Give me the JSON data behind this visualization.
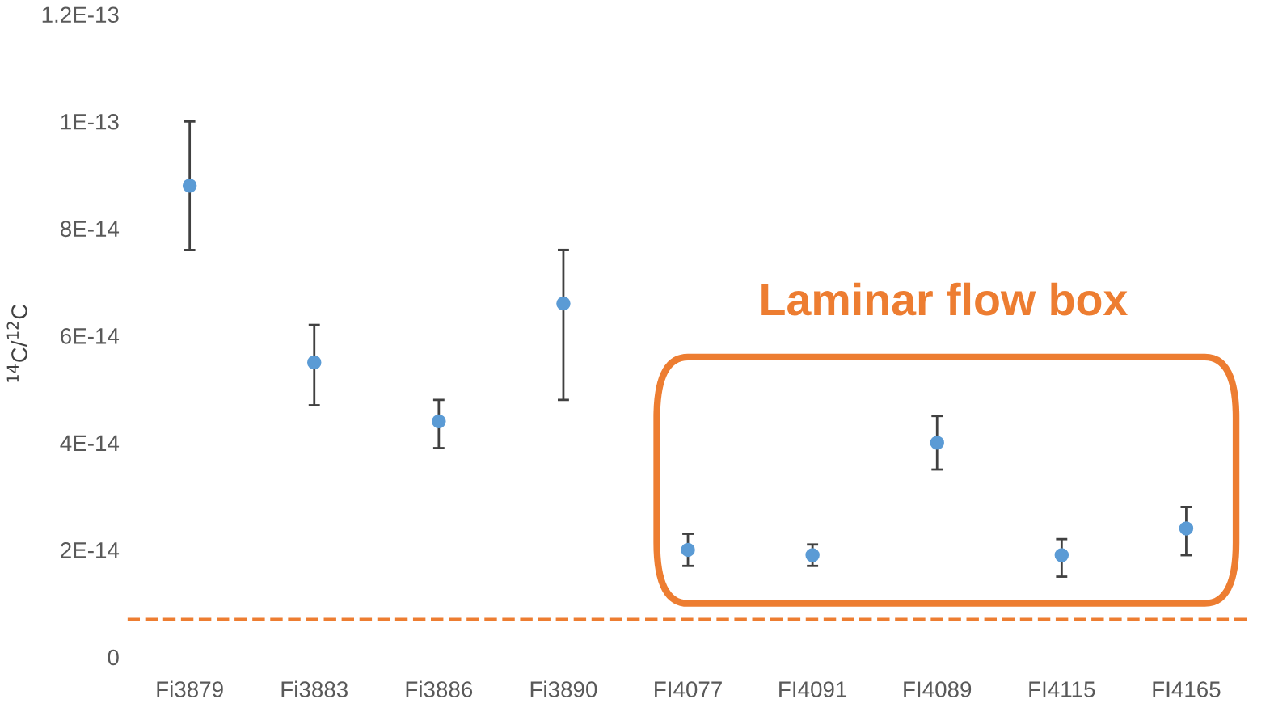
{
  "chart_data": {
    "type": "scatter",
    "ylabel": "$^{14}$C/$^{12}$C",
    "categories": [
      "Fi3879",
      "Fi3883",
      "Fi3886",
      "Fi3890",
      "FI4077",
      "FI4091",
      "FI4089",
      "FI4115",
      "FI4165"
    ],
    "series": [
      {
        "color": "#5b9bd5",
        "values": [
          8.8e-14,
          5.5e-14,
          4.4e-14,
          6.6e-14,
          2e-14,
          1.9e-14,
          4e-14,
          1.9e-14,
          2.4e-14
        ],
        "errors": [
          [
            7.6e-14,
            1e-13
          ],
          [
            4.7e-14,
            6.2e-14
          ],
          [
            3.9e-14,
            4.8e-14
          ],
          [
            4.8e-14,
            7.6e-14
          ],
          [
            1.7e-14,
            2.3e-14
          ],
          [
            1.7e-14,
            2.1e-14
          ],
          [
            3.5e-14,
            4.5e-14
          ],
          [
            1.5e-14,
            2.2e-14
          ],
          [
            1.9e-14,
            2.8e-14
          ]
        ]
      }
    ],
    "ylim": [
      -3e-15,
      1.2e-13
    ],
    "yticks": [
      {
        "value": 0,
        "label": "0"
      },
      {
        "value": 2e-14,
        "label": "2E-14"
      },
      {
        "value": 4e-14,
        "label": "4E-14"
      },
      {
        "value": 6e-14,
        "label": "6E-14"
      },
      {
        "value": 8e-14,
        "label": "8E-14"
      },
      {
        "value": 1e-13,
        "label": "1E-13"
      },
      {
        "value": 1.2e-13,
        "label": "1.2E-13"
      }
    ],
    "ref_lines": [
      {
        "axis": "y",
        "value": 7e-15,
        "color": "#ed7d31",
        "line_style": "dashed"
      }
    ],
    "annotations": [
      "Laminar flow box"
    ],
    "marker": "circle",
    "grid": false,
    "legend": false
  }
}
